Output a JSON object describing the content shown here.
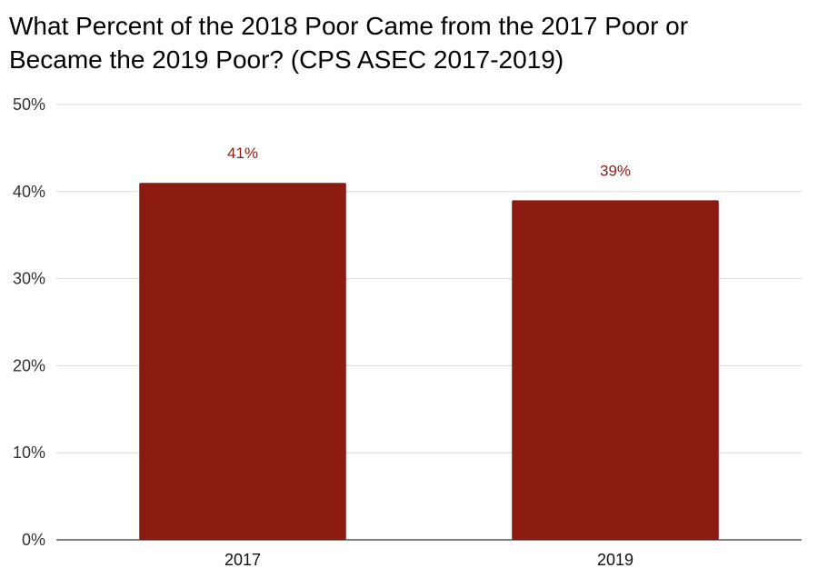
{
  "chart_data": {
    "type": "bar",
    "title_lines": [
      "What Percent of the 2018 Poor Came from the 2017 Poor or",
      "Became the 2019 Poor? (CPS ASEC 2017-2019)"
    ],
    "categories": [
      "2017",
      "2019"
    ],
    "values": [
      41,
      39
    ],
    "data_labels": [
      "41%",
      "39%"
    ],
    "ylim": [
      0,
      50
    ],
    "yticks": [
      0,
      10,
      20,
      30,
      40,
      50
    ],
    "ytick_labels": [
      "0%",
      "10%",
      "20%",
      "30%",
      "40%",
      "50%"
    ],
    "xlabel": "",
    "ylabel": "",
    "grid": true,
    "legend": "none",
    "bar_color": "#8b1a11",
    "data_label_color": "#8b1a11"
  }
}
